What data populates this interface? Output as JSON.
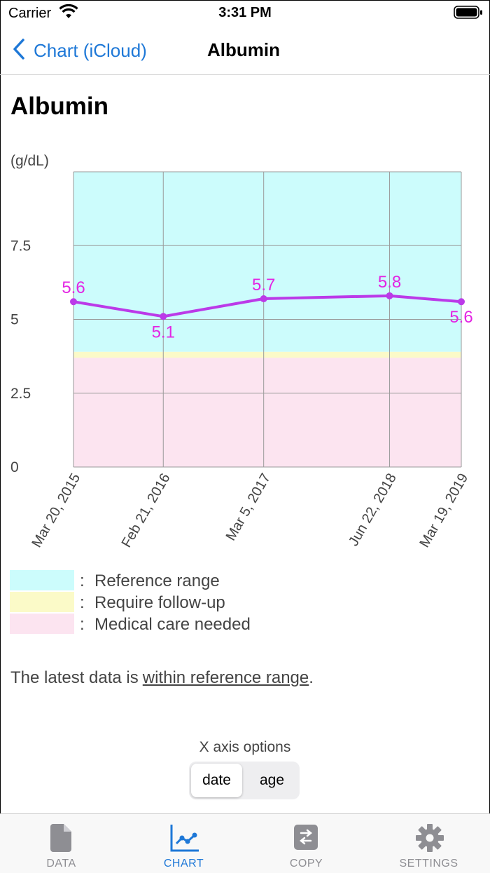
{
  "status_bar": {
    "carrier": "Carrier",
    "time": "3:31 PM"
  },
  "nav": {
    "back_label": "Chart (iCloud)",
    "title": "Albumin"
  },
  "page_title": "Albumin",
  "chart_data": {
    "type": "line",
    "ylabel": "(g/dL)",
    "ylim": [
      0,
      10
    ],
    "y_ticks": [
      "7.5",
      "5",
      "2.5",
      "0"
    ],
    "x": [
      "Mar 20, 2015",
      "Feb 21, 2016",
      "Mar 5, 2017",
      "Jun 22, 2018",
      "Mar 19, 2019"
    ],
    "values": [
      5.6,
      5.1,
      5.7,
      5.8,
      5.6
    ],
    "data_labels": [
      "5.6",
      "5.1",
      "5.7",
      "5.8",
      "5.6"
    ],
    "grid": true,
    "line_color": "#bb3ae8",
    "label_color": "#e325e3",
    "bands": [
      {
        "range": [
          3.9,
          10
        ],
        "color": "#ccfcfc"
      },
      {
        "range": [
          3.7,
          3.9
        ],
        "color": "#fbfac8"
      },
      {
        "range": [
          0,
          3.7
        ],
        "color": "#fce4f0"
      }
    ]
  },
  "legend": [
    {
      "label": "Reference range",
      "color": "#ccfcfc"
    },
    {
      "label": "Require follow-up",
      "color": "#fbfac8"
    },
    {
      "label": "Medical care needed",
      "color": "#fce4f0"
    }
  ],
  "legend_colon": ":",
  "summary": {
    "prefix": "The latest data is",
    "status": "within reference range",
    "suffix": "."
  },
  "x_axis_options": {
    "label": "X axis options",
    "options": [
      "date",
      "age"
    ],
    "selected": "date"
  },
  "tabs": [
    {
      "label": "DATA",
      "icon": "document-icon",
      "active": false
    },
    {
      "label": "CHART",
      "icon": "chart-icon",
      "active": true
    },
    {
      "label": "COPY",
      "icon": "copy-icon",
      "active": false
    },
    {
      "label": "SETTINGS",
      "icon": "gear-icon",
      "active": false
    }
  ],
  "accent_color": "#1e78d7"
}
